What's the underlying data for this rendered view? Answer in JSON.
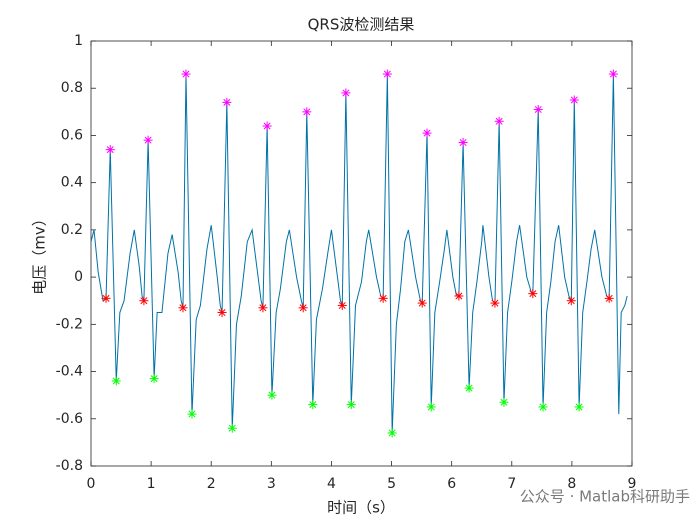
{
  "chart_data": {
    "type": "line",
    "title": "QRS波检测结果",
    "xlabel": "时间（s）",
    "ylabel": "电压（mv）",
    "watermark": "公众号 · Matlab科研助手",
    "xlim": [
      0,
      9
    ],
    "ylim": [
      -0.8,
      1
    ],
    "xticks": [
      0,
      1,
      2,
      3,
      4,
      5,
      6,
      7,
      8,
      9
    ],
    "yticks": [
      -0.8,
      -0.6,
      -0.4,
      -0.2,
      0,
      0.2,
      0.4,
      0.6,
      0.8,
      1
    ],
    "grid": false,
    "series": [
      {
        "color": "#0072a8",
        "x": [
          0.0,
          0.05,
          0.12,
          0.2,
          0.25,
          0.32,
          0.42,
          0.48,
          0.55,
          0.65,
          0.72,
          0.8,
          0.85,
          0.88,
          0.95,
          1.05,
          1.1,
          1.18,
          1.28,
          1.35,
          1.45,
          1.5,
          1.53,
          1.58,
          1.68,
          1.75,
          1.82,
          1.93,
          2.0,
          2.1,
          2.15,
          2.18,
          2.26,
          2.35,
          2.42,
          2.5,
          2.6,
          2.68,
          2.78,
          2.83,
          2.86,
          2.93,
          3.01,
          3.08,
          3.15,
          3.25,
          3.3,
          3.42,
          3.5,
          3.53,
          3.59,
          3.69,
          3.75,
          3.85,
          3.95,
          4.0,
          4.1,
          4.15,
          4.18,
          4.24,
          4.33,
          4.4,
          4.5,
          4.58,
          4.62,
          4.75,
          4.82,
          4.86,
          4.93,
          5.01,
          5.08,
          5.15,
          5.22,
          5.28,
          5.4,
          5.48,
          5.51,
          5.59,
          5.66,
          5.72,
          5.8,
          5.88,
          5.92,
          6.02,
          6.08,
          6.12,
          6.19,
          6.29,
          6.35,
          6.42,
          6.5,
          6.52,
          6.62,
          6.68,
          6.72,
          6.79,
          6.87,
          6.93,
          7.0,
          7.08,
          7.13,
          7.25,
          7.32,
          7.35,
          7.44,
          7.52,
          7.58,
          7.65,
          7.72,
          7.78,
          7.88,
          7.95,
          7.99,
          8.04,
          8.12,
          8.18,
          8.25,
          8.32,
          8.38,
          8.5,
          8.58,
          8.62,
          8.69,
          8.78,
          8.82,
          8.88,
          8.92
        ],
        "values": [
          0.15,
          0.2,
          0.02,
          -0.1,
          -0.09,
          0.54,
          -0.44,
          -0.15,
          -0.1,
          0.1,
          0.2,
          0.05,
          -0.08,
          -0.1,
          0.58,
          -0.43,
          -0.15,
          -0.15,
          0.1,
          0.18,
          0.02,
          -0.1,
          -0.13,
          0.86,
          -0.58,
          -0.18,
          -0.12,
          0.12,
          0.22,
          0.0,
          -0.12,
          -0.15,
          0.74,
          -0.64,
          -0.2,
          -0.08,
          0.15,
          0.2,
          0.0,
          -0.1,
          -0.13,
          0.64,
          -0.5,
          -0.15,
          -0.05,
          0.15,
          0.2,
          0.0,
          -0.1,
          -0.13,
          0.7,
          -0.54,
          -0.18,
          -0.05,
          0.12,
          0.2,
          0.0,
          -0.1,
          -0.12,
          0.78,
          -0.54,
          -0.12,
          -0.02,
          0.15,
          0.2,
          0.0,
          -0.08,
          -0.09,
          0.86,
          -0.66,
          -0.2,
          -0.05,
          0.15,
          0.2,
          0.0,
          -0.1,
          -0.11,
          0.61,
          -0.55,
          -0.15,
          -0.02,
          0.12,
          0.2,
          0.0,
          -0.08,
          -0.08,
          0.57,
          -0.47,
          -0.15,
          -0.02,
          0.15,
          0.22,
          0.0,
          -0.1,
          -0.11,
          0.66,
          -0.53,
          -0.15,
          -0.02,
          0.15,
          0.22,
          0.0,
          -0.06,
          -0.07,
          0.71,
          -0.55,
          -0.15,
          -0.02,
          0.15,
          0.22,
          0.0,
          -0.08,
          -0.1,
          0.75,
          -0.55,
          -0.15,
          -0.02,
          0.12,
          0.2,
          0.0,
          -0.08,
          -0.09,
          0.86,
          -0.58,
          -0.15,
          -0.12,
          -0.08
        ]
      },
      {
        "color": "#ff00ff",
        "marker": "asterisk",
        "x": [
          0.32,
          0.95,
          1.58,
          2.26,
          2.93,
          3.59,
          4.24,
          4.93,
          5.59,
          6.19,
          6.79,
          7.44,
          8.04,
          8.69
        ],
        "values": [
          0.54,
          0.58,
          0.86,
          0.74,
          0.64,
          0.7,
          0.78,
          0.86,
          0.61,
          0.57,
          0.66,
          0.71,
          0.75,
          0.86
        ]
      },
      {
        "color": "#ff0000",
        "marker": "asterisk",
        "x": [
          0.25,
          0.88,
          1.53,
          2.18,
          2.86,
          3.53,
          4.18,
          4.86,
          5.51,
          6.12,
          6.72,
          7.35,
          7.99,
          8.62
        ],
        "values": [
          -0.09,
          -0.1,
          -0.13,
          -0.15,
          -0.13,
          -0.13,
          -0.12,
          -0.09,
          -0.11,
          -0.08,
          -0.11,
          -0.07,
          -0.1,
          -0.09
        ]
      },
      {
        "color": "#00ff00",
        "marker": "asterisk",
        "x": [
          0.42,
          1.05,
          1.68,
          2.35,
          3.01,
          3.69,
          4.33,
          5.01,
          5.66,
          6.29,
          6.87,
          7.52,
          8.12
        ],
        "values": [
          -0.44,
          -0.43,
          -0.58,
          -0.64,
          -0.5,
          -0.54,
          -0.54,
          -0.66,
          -0.55,
          -0.47,
          -0.53,
          -0.55,
          -0.55
        ]
      }
    ]
  }
}
